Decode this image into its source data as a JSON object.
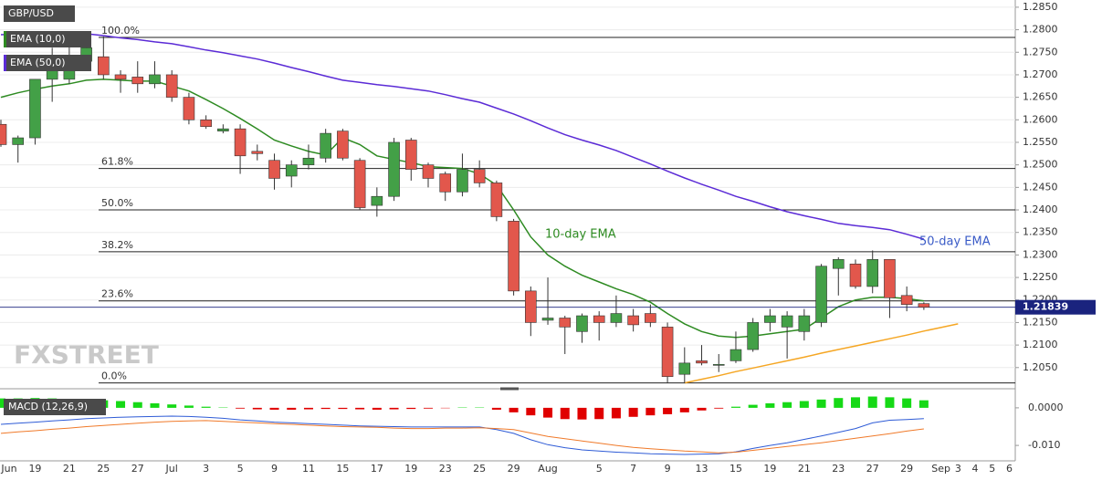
{
  "chart_data": [
    {
      "type": "candlestick",
      "name": "GBP/USD",
      "categories": [
        "Jun",
        null,
        "19",
        null,
        "21",
        null,
        "25",
        null,
        "27",
        null,
        "Jul",
        null,
        "3",
        null,
        "5",
        null,
        "9",
        null,
        "11",
        null,
        "15",
        null,
        "17",
        null,
        "19",
        null,
        "23",
        null,
        "25",
        null,
        "29",
        null,
        "Aug",
        null,
        null,
        "5",
        null,
        "7",
        null,
        "9",
        null,
        "13",
        null,
        "15",
        null,
        "19",
        null,
        "21",
        null,
        "23",
        null,
        "27",
        null,
        "29",
        null,
        "Sep",
        "3",
        "4",
        "5",
        "6"
      ],
      "open": [
        1.259,
        1.2545,
        1.256,
        1.269,
        1.269,
        1.273,
        1.274,
        1.27,
        1.2695,
        1.268,
        1.27,
        1.265,
        1.26,
        1.2575,
        1.258,
        1.253,
        1.251,
        1.2475,
        1.25,
        1.2515,
        1.2575,
        1.251,
        1.241,
        1.243,
        1.2555,
        1.25,
        1.248,
        1.244,
        1.249,
        1.246,
        1.2375,
        1.222,
        1.2155,
        1.216,
        1.213,
        1.2165,
        1.215,
        1.2165,
        1.217,
        1.214,
        1.2035,
        1.2065,
        1.2055,
        1.2065,
        1.209,
        1.215,
        1.214,
        1.213,
        1.215,
        1.227,
        1.228,
        1.223,
        1.229,
        1.221,
        1.2192,
        null,
        null,
        null,
        null,
        null
      ],
      "high": [
        1.26,
        1.2565,
        1.269,
        1.276,
        1.277,
        1.2785,
        1.2785,
        1.271,
        1.273,
        1.273,
        1.271,
        1.266,
        1.261,
        1.259,
        1.259,
        1.2545,
        1.2525,
        1.251,
        1.2545,
        1.258,
        1.258,
        1.2515,
        1.245,
        1.256,
        1.256,
        1.2505,
        1.2485,
        1.2525,
        1.251,
        1.2465,
        1.238,
        1.223,
        1.225,
        1.2165,
        1.217,
        1.2175,
        1.221,
        1.218,
        1.219,
        1.215,
        1.2095,
        1.21,
        1.208,
        1.213,
        1.216,
        1.218,
        1.2175,
        1.218,
        1.228,
        1.2295,
        1.229,
        1.231,
        1.229,
        1.223,
        1.2195,
        null,
        null,
        null,
        null,
        null
      ],
      "low": [
        1.254,
        1.2505,
        1.2545,
        1.264,
        1.268,
        1.272,
        1.269,
        1.266,
        1.266,
        1.267,
        1.264,
        1.259,
        1.258,
        1.257,
        1.248,
        1.251,
        1.2445,
        1.245,
        1.249,
        1.2505,
        1.251,
        1.24,
        1.2385,
        1.242,
        1.2465,
        1.245,
        1.242,
        1.243,
        1.245,
        1.2375,
        1.221,
        1.212,
        1.2145,
        1.208,
        1.2105,
        1.211,
        1.214,
        1.213,
        1.214,
        1.2015,
        1.2015,
        1.2055,
        1.204,
        1.206,
        1.2085,
        1.213,
        1.207,
        1.211,
        1.214,
        1.221,
        1.2225,
        1.2215,
        1.216,
        1.2175,
        1.2178,
        null,
        null,
        null,
        null,
        null
      ],
      "close": [
        1.2545,
        1.256,
        1.269,
        1.274,
        1.274,
        1.276,
        1.27,
        1.269,
        1.268,
        1.27,
        1.265,
        1.26,
        1.2585,
        1.258,
        1.252,
        1.2525,
        1.247,
        1.25,
        1.2515,
        1.257,
        1.2515,
        1.2405,
        1.243,
        1.255,
        1.249,
        1.247,
        1.244,
        1.249,
        1.246,
        1.2385,
        1.222,
        1.215,
        1.216,
        1.214,
        1.2165,
        1.215,
        1.217,
        1.2145,
        1.215,
        1.203,
        1.206,
        1.206,
        1.2057,
        1.209,
        1.215,
        1.2165,
        1.2165,
        1.2165,
        1.2275,
        1.229,
        1.223,
        1.229,
        1.2205,
        1.219,
        1.2184,
        null,
        null,
        null,
        null,
        null
      ],
      "up_color": "#43a047",
      "down_color": "#e2574c",
      "series": [
        {
          "name": "EMA (10,0)",
          "color": "#2e8b22",
          "values": [
            1.265,
            1.266,
            1.2668,
            1.2675,
            1.268,
            1.2688,
            1.269,
            1.2688,
            1.2686,
            1.2686,
            1.2675,
            1.2664,
            1.2645,
            1.2625,
            1.2603,
            1.258,
            1.2555,
            1.2542,
            1.253,
            1.2522,
            1.256,
            1.2545,
            1.252,
            1.2512,
            1.2505,
            1.2496,
            1.2494,
            1.2492,
            1.248,
            1.2455,
            1.24,
            1.234,
            1.23,
            1.2275,
            1.2255,
            1.224,
            1.2225,
            1.2212,
            1.2195,
            1.217,
            1.2147,
            1.213,
            1.212,
            1.2117,
            1.212,
            1.2125,
            1.213,
            1.2135,
            1.216,
            1.2185,
            1.22,
            1.2206,
            1.2206,
            1.2203,
            1.2198,
            null,
            null,
            null,
            null,
            null
          ]
        },
        {
          "name": "EMA (50,0)",
          "color": "#5b2bd6",
          "values": [
            1.2789,
            1.279,
            1.279,
            1.2791,
            1.2791,
            1.2791,
            1.2787,
            1.2782,
            1.2778,
            1.2773,
            1.2769,
            1.2762,
            1.2755,
            1.2749,
            1.2742,
            1.2735,
            1.2726,
            1.2716,
            1.2707,
            1.2697,
            1.2688,
            1.2683,
            1.2678,
            1.2674,
            1.2669,
            1.2664,
            1.2656,
            1.2647,
            1.2639,
            1.2626,
            1.2613,
            1.2598,
            1.2582,
            1.2567,
            1.2555,
            1.2544,
            1.2532,
            1.2517,
            1.2502,
            1.2486,
            1.2471,
            1.2457,
            1.2444,
            1.243,
            1.2419,
            1.2407,
            1.2396,
            1.2387,
            1.2379,
            1.237,
            1.2365,
            1.2361,
            1.2356,
            1.2346,
            1.2335,
            null,
            null,
            null,
            null,
            null
          ]
        }
      ],
      "trendline": {
        "color": "#f5a623",
        "values": [
          null,
          null,
          null,
          null,
          null,
          null,
          null,
          null,
          null,
          null,
          null,
          null,
          null,
          null,
          null,
          null,
          null,
          null,
          null,
          null,
          null,
          null,
          null,
          null,
          null,
          null,
          null,
          null,
          null,
          null,
          null,
          null,
          null,
          null,
          null,
          null,
          null,
          null,
          null,
          null,
          1.2016,
          1.2024,
          1.2032,
          1.2041,
          1.2049,
          1.2057,
          1.2065,
          1.2073,
          1.2082,
          1.209,
          1.2098,
          1.2106,
          1.2114,
          1.2122,
          1.2131,
          1.2139,
          1.2147,
          null,
          null,
          null
        ]
      },
      "fib_levels": [
        {
          "label": "100.0%",
          "value": 1.2783
        },
        {
          "label": "61.8%",
          "value": 1.2492
        },
        {
          "label": "50.0%",
          "value": 1.24
        },
        {
          "label": "38.2%",
          "value": 1.2307
        },
        {
          "label": "23.6%",
          "value": 1.2198
        },
        {
          "label": "0.0%",
          "value": 1.2016
        }
      ],
      "annotations": [
        {
          "text": "10-day EMA",
          "color": "#2e8b22"
        },
        {
          "text": "50-day EMA",
          "color": "#3a5bc7"
        }
      ],
      "current_price": 1.21839,
      "watermark": "FXSTREET",
      "ylim": [
        1.2005,
        1.2866
      ],
      "yticks": [
        {
          "value": 1.205,
          "label": "1.2050"
        },
        {
          "value": 1.21,
          "label": "1.2100"
        },
        {
          "value": 1.215,
          "label": "1.2150"
        },
        {
          "value": 1.22,
          "label": "1.2200"
        },
        {
          "value": 1.225,
          "label": "1.2250"
        },
        {
          "value": 1.23,
          "label": "1.2300"
        },
        {
          "value": 1.235,
          "label": "1.2350"
        },
        {
          "value": 1.24,
          "label": "1.2400"
        },
        {
          "value": 1.245,
          "label": "1.2450"
        },
        {
          "value": 1.25,
          "label": "1.2500"
        },
        {
          "value": 1.255,
          "label": "1.2550"
        },
        {
          "value": 1.26,
          "label": "1.2600"
        },
        {
          "value": 1.265,
          "label": "1.2650"
        },
        {
          "value": 1.27,
          "label": "1.2700"
        },
        {
          "value": 1.275,
          "label": "1.2750"
        },
        {
          "value": 1.28,
          "label": "1.2800"
        },
        {
          "value": 1.285,
          "label": "1.2850"
        }
      ],
      "grid": true
    },
    {
      "type": "macd",
      "title": "MACD (12,26,9)",
      "histogram": {
        "pos_color": "#16d916",
        "neg_color": "#e00000",
        "values": [
          0.0025,
          0.0025,
          0.0026,
          0.0025,
          0.0024,
          0.0022,
          0.002,
          0.0018,
          0.0015,
          0.0012,
          0.0009,
          0.0006,
          0.0003,
          0.0001,
          -0.0002,
          -0.0004,
          -0.0005,
          -0.0005,
          -0.0004,
          -0.0003,
          -0.0003,
          -0.0004,
          -0.0005,
          -0.0004,
          -0.0003,
          -0.0002,
          -0.0001,
          0.0001,
          0.0001,
          -0.0005,
          -0.0012,
          -0.002,
          -0.0026,
          -0.003,
          -0.0031,
          -0.003,
          -0.0028,
          -0.0024,
          -0.002,
          -0.0017,
          -0.0012,
          -0.0007,
          -0.0002,
          0.0003,
          0.0008,
          0.0012,
          0.0015,
          0.0018,
          0.0022,
          0.0026,
          0.0028,
          0.003,
          0.0028,
          0.0025,
          0.002,
          null,
          null,
          null,
          null,
          null
        ]
      },
      "series": [
        {
          "color": "#2e5bd6",
          "values": [
            -0.0044,
            -0.0041,
            -0.0038,
            -0.0035,
            -0.0032,
            -0.0029,
            -0.0027,
            -0.0025,
            -0.0024,
            -0.0023,
            -0.0022,
            -0.0023,
            -0.0025,
            -0.0028,
            -0.0032,
            -0.0035,
            -0.0038,
            -0.004,
            -0.0042,
            -0.0044,
            -0.0046,
            -0.0048,
            -0.0049,
            -0.005,
            -0.0051,
            -0.0051,
            -0.0051,
            -0.0051,
            -0.0051,
            -0.0058,
            -0.0068,
            -0.0085,
            -0.0098,
            -0.0106,
            -0.0112,
            -0.0115,
            -0.0118,
            -0.012,
            -0.0122,
            -0.0123,
            -0.0124,
            -0.0123,
            -0.0122,
            -0.0117,
            -0.0108,
            -0.01,
            -0.0093,
            -0.0084,
            -0.0075,
            -0.0065,
            -0.0055,
            -0.004,
            -0.0033,
            -0.0031,
            -0.0029,
            null,
            null,
            null,
            null,
            null
          ]
        },
        {
          "color": "#f07a2a",
          "values": [
            -0.0068,
            -0.0064,
            -0.0061,
            -0.0057,
            -0.0054,
            -0.005,
            -0.0047,
            -0.0044,
            -0.0041,
            -0.0038,
            -0.0036,
            -0.0035,
            -0.0034,
            -0.0036,
            -0.0038,
            -0.004,
            -0.0042,
            -0.0044,
            -0.0046,
            -0.0048,
            -0.005,
            -0.0051,
            -0.0052,
            -0.0054,
            -0.0055,
            -0.0055,
            -0.0054,
            -0.0054,
            -0.0053,
            -0.0055,
            -0.0058,
            -0.0067,
            -0.0076,
            -0.0082,
            -0.0088,
            -0.0094,
            -0.01,
            -0.0105,
            -0.0109,
            -0.0112,
            -0.0115,
            -0.0117,
            -0.012,
            -0.0118,
            -0.0113,
            -0.0108,
            -0.0103,
            -0.0098,
            -0.0093,
            -0.0087,
            -0.0081,
            -0.0075,
            -0.0069,
            -0.0062,
            -0.0056,
            null,
            null,
            null,
            null,
            null
          ]
        }
      ],
      "ylim": [
        -0.0141,
        0.0041
      ],
      "yticks": [
        {
          "value": 0,
          "label": "0.0000"
        },
        {
          "value": -0.01,
          "label": "-0.010"
        }
      ]
    }
  ]
}
